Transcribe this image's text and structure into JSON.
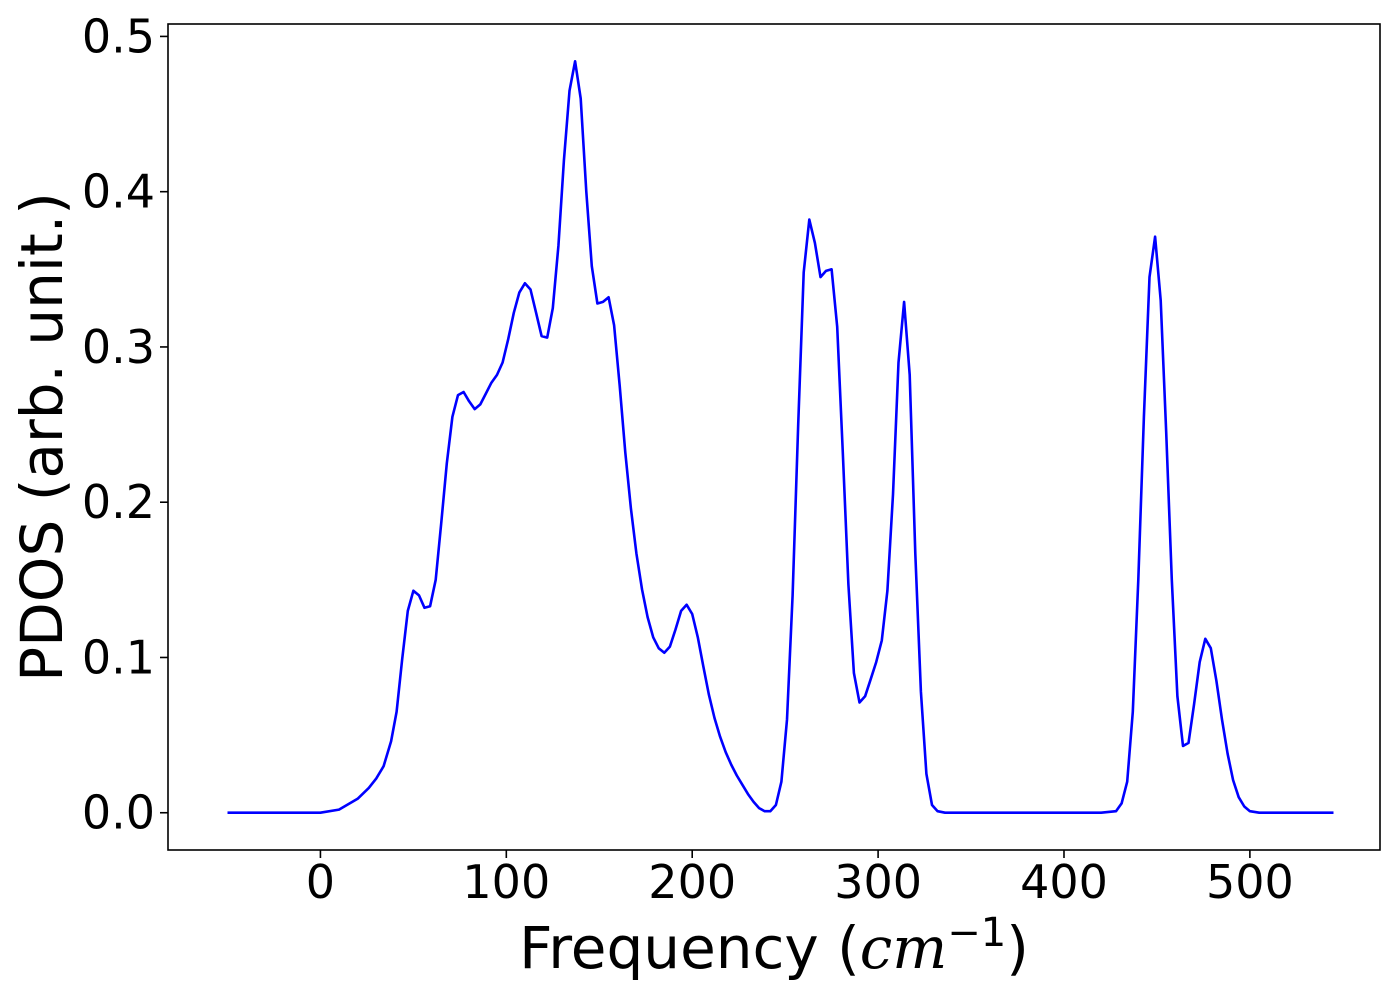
{
  "chart_data": {
    "type": "line",
    "xlabel": "Frequency (",
    "xlabel_math": "cm",
    "xlabel_exp": "−1",
    "xlabel_close": ")",
    "ylabel": "PDOS (arb. unit.)",
    "xlim": [
      -82,
      570
    ],
    "ylim": [
      -0.024,
      0.508
    ],
    "xticks": [
      0,
      100,
      200,
      300,
      400,
      500
    ],
    "xtick_labels": [
      "0",
      "100",
      "200",
      "300",
      "400",
      "500"
    ],
    "yticks": [
      0.0,
      0.1,
      0.2,
      0.3,
      0.4,
      0.5
    ],
    "ytick_labels": [
      "0.0",
      "0.1",
      "0.2",
      "0.3",
      "0.4",
      "0.5"
    ],
    "grid": false,
    "legend": "none",
    "series": [
      {
        "color": "#0000ff",
        "x": [
          -50,
          -30,
          -10,
          0,
          10,
          20,
          26,
          30,
          34,
          38,
          41,
          44,
          47,
          50,
          53,
          56,
          59,
          62,
          65,
          68,
          71,
          74,
          77,
          80,
          83,
          86,
          89,
          92,
          95,
          98,
          101,
          104,
          107,
          110,
          113,
          116,
          119,
          122,
          125,
          128,
          131,
          134,
          137,
          140,
          143,
          146,
          149,
          152,
          155,
          158,
          161,
          164,
          167,
          170,
          173,
          176,
          179,
          182,
          185,
          188,
          191,
          194,
          197,
          200,
          203,
          206,
          209,
          212,
          215,
          218,
          221,
          224,
          227,
          230,
          233,
          236,
          239,
          242,
          245,
          248,
          251,
          254,
          257,
          260,
          263,
          266,
          269,
          272,
          275,
          278,
          281,
          284,
          287,
          290,
          293,
          296,
          299,
          302,
          305,
          308,
          311,
          314,
          317,
          320,
          323,
          326,
          329,
          332,
          336,
          345,
          360,
          400,
          420,
          428,
          431,
          434,
          437,
          440,
          443,
          446,
          449,
          452,
          455,
          458,
          461,
          464,
          467,
          470,
          473,
          476,
          479,
          482,
          485,
          488,
          491,
          494,
          497,
          500,
          505,
          510,
          520,
          545
        ],
        "y": [
          0,
          0,
          0,
          0,
          0.002,
          0.009,
          0.016,
          0.022,
          0.03,
          0.046,
          0.065,
          0.099,
          0.13,
          0.143,
          0.14,
          0.132,
          0.133,
          0.15,
          0.187,
          0.225,
          0.255,
          0.269,
          0.271,
          0.265,
          0.26,
          0.263,
          0.27,
          0.277,
          0.282,
          0.29,
          0.305,
          0.322,
          0.335,
          0.341,
          0.337,
          0.322,
          0.307,
          0.306,
          0.325,
          0.365,
          0.42,
          0.465,
          0.484,
          0.46,
          0.4,
          0.352,
          0.328,
          0.329,
          0.332,
          0.314,
          0.275,
          0.232,
          0.196,
          0.167,
          0.144,
          0.126,
          0.113,
          0.106,
          0.103,
          0.107,
          0.118,
          0.13,
          0.134,
          0.128,
          0.113,
          0.094,
          0.076,
          0.061,
          0.049,
          0.039,
          0.031,
          0.024,
          0.018,
          0.012,
          0.007,
          0.003,
          0.001,
          0.001,
          0.005,
          0.02,
          0.06,
          0.14,
          0.25,
          0.348,
          0.382,
          0.367,
          0.345,
          0.349,
          0.35,
          0.313,
          0.232,
          0.147,
          0.09,
          0.071,
          0.075,
          0.086,
          0.097,
          0.111,
          0.143,
          0.205,
          0.29,
          0.329,
          0.282,
          0.167,
          0.078,
          0.025,
          0.005,
          0.001,
          0,
          0,
          0,
          0,
          0,
          0.001,
          0.006,
          0.02,
          0.065,
          0.15,
          0.255,
          0.345,
          0.371,
          0.33,
          0.245,
          0.15,
          0.075,
          0.043,
          0.045,
          0.07,
          0.097,
          0.112,
          0.106,
          0.085,
          0.06,
          0.038,
          0.021,
          0.01,
          0.004,
          0.001,
          0,
          0,
          0,
          0
        ]
      }
    ]
  }
}
